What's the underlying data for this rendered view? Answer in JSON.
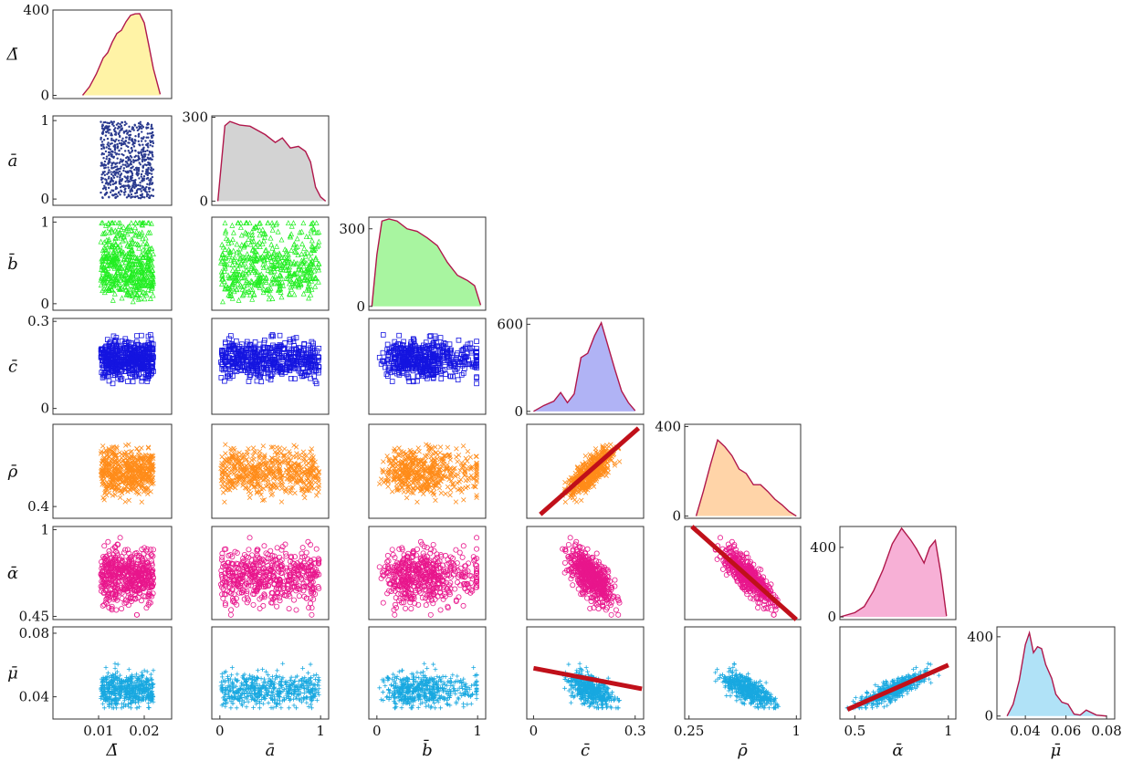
{
  "chart_data": {
    "type": "pairplot",
    "variables": [
      {
        "key": "Delta",
        "label": "Δ̄",
        "range": [
          0.0,
          0.026
        ],
        "ticks": [
          {
            "v": 0.01,
            "t": "0.01"
          },
          {
            "v": 0.02,
            "t": "0.02"
          }
        ]
      },
      {
        "key": "a",
        "label": "ā",
        "range": [
          -0.08,
          1.08
        ],
        "ticks": [
          {
            "v": 0,
            "t": "0"
          },
          {
            "v": 1,
            "t": "1"
          }
        ]
      },
      {
        "key": "b",
        "label": "b̄",
        "range": [
          -0.08,
          1.08
        ],
        "ticks": [
          {
            "v": 0,
            "t": "0"
          },
          {
            "v": 1,
            "t": "1"
          }
        ]
      },
      {
        "key": "c",
        "label": "c̄",
        "range": [
          -0.02,
          0.325
        ],
        "ticks": [
          {
            "v": 0,
            "t": "0"
          },
          {
            "v": 0.3,
            "t": "0.3"
          }
        ]
      },
      {
        "key": "rho",
        "label": "ρ̄",
        "range": [
          0.22,
          1.03
        ],
        "ticks": [
          {
            "v": 0.25,
            "t": "0.25"
          },
          {
            "v": 1,
            "t": "1"
          }
        ]
      },
      {
        "key": "alpha",
        "label": "ᾱ",
        "range": [
          0.42,
          1.04
        ],
        "ticks": [
          {
            "v": 0.5,
            "t": "0.5"
          },
          {
            "v": 1,
            "t": "1"
          }
        ]
      },
      {
        "key": "mu",
        "label": "μ̄",
        "range": [
          0.026,
          0.084
        ],
        "ticks": [
          {
            "v": 0.04,
            "t": "0.04"
          },
          {
            "v": 0.06,
            "t": "0.06"
          },
          {
            "v": 0.08,
            "t": "0.08"
          }
        ]
      }
    ],
    "row_ticks": [
      {
        "var": "Delta",
        "range": [
          -15,
          400
        ],
        "ticks": [
          {
            "v": 0,
            "t": "0"
          },
          {
            "v": 400,
            "t": "400"
          }
        ]
      },
      {
        "var": "a",
        "range": [
          -0.08,
          1.06
        ],
        "ticks": [
          {
            "v": 0,
            "t": "0"
          },
          {
            "v": 1,
            "t": "1"
          }
        ]
      },
      {
        "var": "b",
        "range": [
          -0.08,
          1.06
        ],
        "ticks": [
          {
            "v": 0,
            "t": "0"
          },
          {
            "v": 1,
            "t": "1"
          }
        ]
      },
      {
        "var": "c",
        "range": [
          -0.02,
          0.31
        ],
        "ticks": [
          {
            "v": 0,
            "t": "0"
          },
          {
            "v": 0.3,
            "t": "0.3"
          }
        ]
      },
      {
        "var": "rho",
        "range": [
          0.31,
          1.03
        ],
        "ticks": [
          {
            "v": 0.4,
            "t": "0.4"
          }
        ]
      },
      {
        "var": "alpha",
        "range": [
          0.43,
          1.02
        ],
        "ticks": [
          {
            "v": 0.45,
            "t": "0.45"
          },
          {
            "v": 1,
            "t": "1"
          }
        ]
      },
      {
        "var": "mu",
        "range": [
          0.026,
          0.084
        ],
        "ticks": [
          {
            "v": 0.04,
            "t": "0.04"
          },
          {
            "v": 0.08,
            "t": "0.08"
          }
        ]
      }
    ],
    "densities": [
      {
        "var": "Delta",
        "fill": "#FFF3A6",
        "ylim": [
          -15,
          400
        ],
        "yticks": [
          {
            "v": 0,
            "t": "0"
          },
          {
            "v": 400,
            "t": "400"
          }
        ],
        "x": [
          0.0065,
          0.008,
          0.0095,
          0.011,
          0.012,
          0.013,
          0.014,
          0.015,
          0.016,
          0.017,
          0.018,
          0.019,
          0.02,
          0.021,
          0.022,
          0.0235
        ],
        "y": [
          0,
          40,
          100,
          175,
          200,
          250,
          290,
          305,
          345,
          375,
          382,
          383,
          340,
          235,
          125,
          5
        ]
      },
      {
        "var": "a",
        "fill": "#D3D3D3",
        "ylim": [
          -15,
          305
        ],
        "yticks": [
          {
            "v": 0,
            "t": "0"
          },
          {
            "v": 300,
            "t": "300"
          }
        ],
        "x": [
          -0.02,
          0.05,
          0.1,
          0.2,
          0.3,
          0.45,
          0.55,
          0.62,
          0.7,
          0.78,
          0.85,
          0.9,
          0.95,
          1.0,
          1.05
        ],
        "y": [
          0,
          270,
          285,
          272,
          268,
          238,
          210,
          226,
          190,
          196,
          178,
          140,
          50,
          15,
          0
        ]
      },
      {
        "var": "b",
        "fill": "#A8F5A0",
        "ylim": [
          -15,
          345
        ],
        "yticks": [
          {
            "v": 0,
            "t": "0"
          },
          {
            "v": 300,
            "t": "300"
          }
        ],
        "x": [
          -0.05,
          0.0,
          0.05,
          0.12,
          0.2,
          0.3,
          0.4,
          0.5,
          0.6,
          0.7,
          0.8,
          0.9,
          0.97,
          1.03
        ],
        "y": [
          0,
          200,
          330,
          338,
          330,
          300,
          290,
          265,
          235,
          170,
          120,
          100,
          80,
          5
        ]
      },
      {
        "var": "c",
        "fill": "#B0B3F5",
        "ylim": [
          -20,
          640
        ],
        "yticks": [
          {
            "v": 0,
            "t": "0"
          },
          {
            "v": 600,
            "t": "600"
          }
        ],
        "x": [
          0.0,
          0.03,
          0.06,
          0.08,
          0.1,
          0.12,
          0.14,
          0.16,
          0.18,
          0.2,
          0.22,
          0.24,
          0.26,
          0.28,
          0.3
        ],
        "y": [
          0,
          40,
          70,
          130,
          60,
          120,
          370,
          400,
          520,
          610,
          450,
          290,
          140,
          60,
          5
        ]
      },
      {
        "var": "rho",
        "fill": "#FFD4A8",
        "ylim": [
          -10,
          410
        ],
        "yticks": [
          {
            "v": 0,
            "t": "0"
          },
          {
            "v": 400,
            "t": "400"
          }
        ],
        "x": [
          0.3,
          0.35,
          0.4,
          0.45,
          0.5,
          0.55,
          0.6,
          0.65,
          0.7,
          0.75,
          0.8,
          0.85,
          0.9,
          0.95,
          1.0
        ],
        "y": [
          0,
          110,
          230,
          340,
          310,
          270,
          210,
          190,
          140,
          140,
          110,
          75,
          50,
          20,
          0
        ]
      },
      {
        "var": "alpha",
        "fill": "#F7B0D6",
        "ylim": [
          -15,
          520
        ],
        "yticks": [
          {
            "v": 0,
            "t": "0"
          },
          {
            "v": 400,
            "t": "400"
          }
        ],
        "x": [
          0.42,
          0.5,
          0.55,
          0.6,
          0.65,
          0.7,
          0.75,
          0.8,
          0.83,
          0.87,
          0.9,
          0.93,
          0.96,
          0.99
        ],
        "y": [
          0,
          25,
          60,
          150,
          270,
          420,
          510,
          440,
          390,
          310,
          400,
          440,
          250,
          5
        ]
      },
      {
        "var": "mu",
        "fill": "#B0E2F7",
        "ylim": [
          -15,
          450
        ],
        "yticks": [
          {
            "v": 0,
            "t": "0"
          },
          {
            "v": 400,
            "t": "400"
          }
        ],
        "x": [
          0.031,
          0.034,
          0.037,
          0.04,
          0.042,
          0.044,
          0.046,
          0.048,
          0.05,
          0.053,
          0.055,
          0.058,
          0.061,
          0.064,
          0.067,
          0.07,
          0.075,
          0.08
        ],
        "y": [
          0,
          60,
          180,
          360,
          420,
          320,
          350,
          340,
          260,
          190,
          110,
          70,
          60,
          10,
          5,
          30,
          5,
          0
        ]
      }
    ],
    "scatter_markers": [
      {
        "row_var": "a",
        "marker": "dot",
        "color": "#2B3B8F"
      },
      {
        "row_var": "b",
        "marker": "triangle",
        "color": "#22EE22"
      },
      {
        "row_var": "c",
        "marker": "square",
        "color": "#1515E0"
      },
      {
        "row_var": "rho",
        "marker": "x",
        "color": "#FF8C1A"
      },
      {
        "row_var": "alpha",
        "marker": "circle",
        "color": "#E8168C"
      },
      {
        "row_var": "mu",
        "marker": "plus",
        "color": "#18A8E0"
      }
    ],
    "fit_lines": [
      {
        "x_var": "c",
        "y_var": "rho",
        "x": [
          0.02,
          0.31
        ],
        "y": [
          0.34,
          1.0
        ]
      },
      {
        "x_var": "rho",
        "y_var": "alpha",
        "x": [
          0.27,
          1.0
        ],
        "y": [
          1.02,
          0.43
        ]
      },
      {
        "x_var": "c",
        "y_var": "mu",
        "x": [
          0.0,
          0.32
        ],
        "y": [
          0.058,
          0.045
        ]
      },
      {
        "x_var": "alpha",
        "y_var": "mu",
        "x": [
          0.46,
          1.0
        ],
        "y": [
          0.032,
          0.06
        ]
      }
    ],
    "fit_color": "#C0101A",
    "kde_line_color": "#B0174B"
  }
}
